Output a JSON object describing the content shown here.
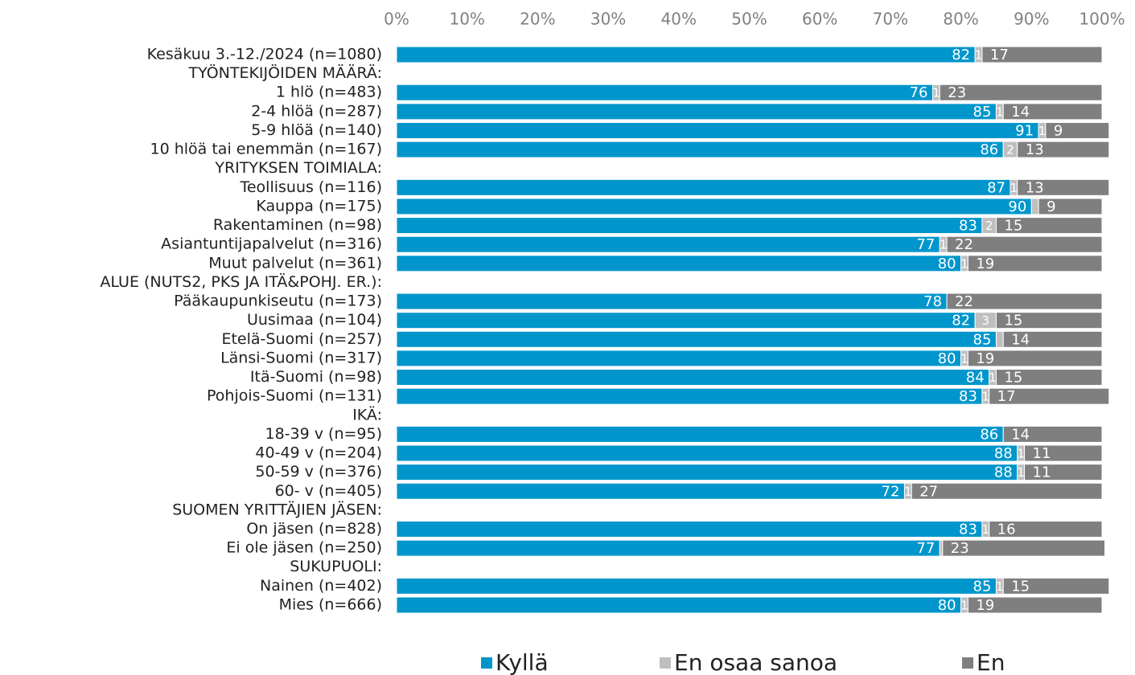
{
  "chart_data": {
    "type": "stacked_barh",
    "categories": [
      "Kesäkuu 3.-12./2024 (n=1080)",
      "TYÖNTEKIJÖIDEN MÄÄRÄ:",
      "1 hlö (n=483)",
      "2-4 hlöä (n=287)",
      "5-9 hlöä (n=140)",
      "10 hlöä tai enemmän (n=167)",
      "YRITYKSEN TOIMIALA:",
      "Teollisuus (n=116)",
      "Kauppa (n=175)",
      "Rakentaminen (n=98)",
      "Asiantuntijapalvelut (n=316)",
      "Muut palvelut (n=361)",
      "ALUE (NUTS2, PKS JA ITÄ&POHJ. ER.):",
      "Pääkaupunkiseutu (n=173)",
      "Uusimaa (n=104)",
      "Etelä-Suomi (n=257)",
      "Länsi-Suomi (n=317)",
      "Itä-Suomi (n=98)",
      "Pohjois-Suomi (n=131)",
      "IKÄ:",
      "18-39 v (n=95)",
      "40-49 v (n=204)",
      "50-59 v (n=376)",
      "60- v (n=405)",
      "SUOMEN YRITTÄJIEN JÄSEN:",
      "On jäsen (n=828)",
      "Ei ole jäsen (n=250)",
      "SUKUPUOLI:",
      "Nainen (n=402)",
      "Mies (n=666)"
    ],
    "series": [
      {
        "name": "Kyllä",
        "color": "#0096cc",
        "values": [
          82,
          null,
          76,
          85,
          91,
          86,
          null,
          87,
          90,
          83,
          77,
          80,
          null,
          78,
          82,
          85,
          80,
          84,
          83,
          null,
          86,
          88,
          88,
          72,
          null,
          83,
          77,
          null,
          85,
          80
        ]
      },
      {
        "name": "En osaa sanoa",
        "color": "#bfbfbf",
        "values": [
          1,
          null,
          1,
          1,
          1,
          2,
          null,
          1,
          1,
          2,
          1,
          1,
          null,
          0,
          3,
          1,
          1,
          1,
          1,
          null,
          0,
          1,
          1,
          1,
          null,
          1,
          0.4,
          null,
          1,
          1
        ],
        "value_labels": [
          "1",
          null,
          "1",
          "1",
          "1",
          "2",
          null,
          "1",
          null,
          "2",
          "1",
          "1",
          null,
          null,
          "3",
          null,
          "1",
          "1",
          "1",
          null,
          null,
          "1",
          "1",
          "1",
          null,
          "1",
          null,
          null,
          "1",
          "1"
        ]
      },
      {
        "name": "En",
        "color": "#7f7f7f",
        "values": [
          17,
          null,
          23,
          14,
          9,
          13,
          null,
          13,
          9,
          15,
          22,
          19,
          null,
          22,
          15,
          14,
          19,
          15,
          17,
          null,
          14,
          11,
          11,
          27,
          null,
          16,
          23,
          null,
          15,
          19
        ]
      }
    ],
    "xlim": [
      0,
      100
    ],
    "xticks": [
      {
        "value": 0,
        "label": "0%"
      },
      {
        "value": 10,
        "label": "10%"
      },
      {
        "value": 20,
        "label": "20%"
      },
      {
        "value": 30,
        "label": "30%"
      },
      {
        "value": 40,
        "label": "40%"
      },
      {
        "value": 50,
        "label": "50%"
      },
      {
        "value": 60,
        "label": "60%"
      },
      {
        "value": 70,
        "label": "70%"
      },
      {
        "value": 80,
        "label": "80%"
      },
      {
        "value": 90,
        "label": "90%"
      },
      {
        "value": 100,
        "label": "100%"
      }
    ],
    "legend": "bottom"
  }
}
